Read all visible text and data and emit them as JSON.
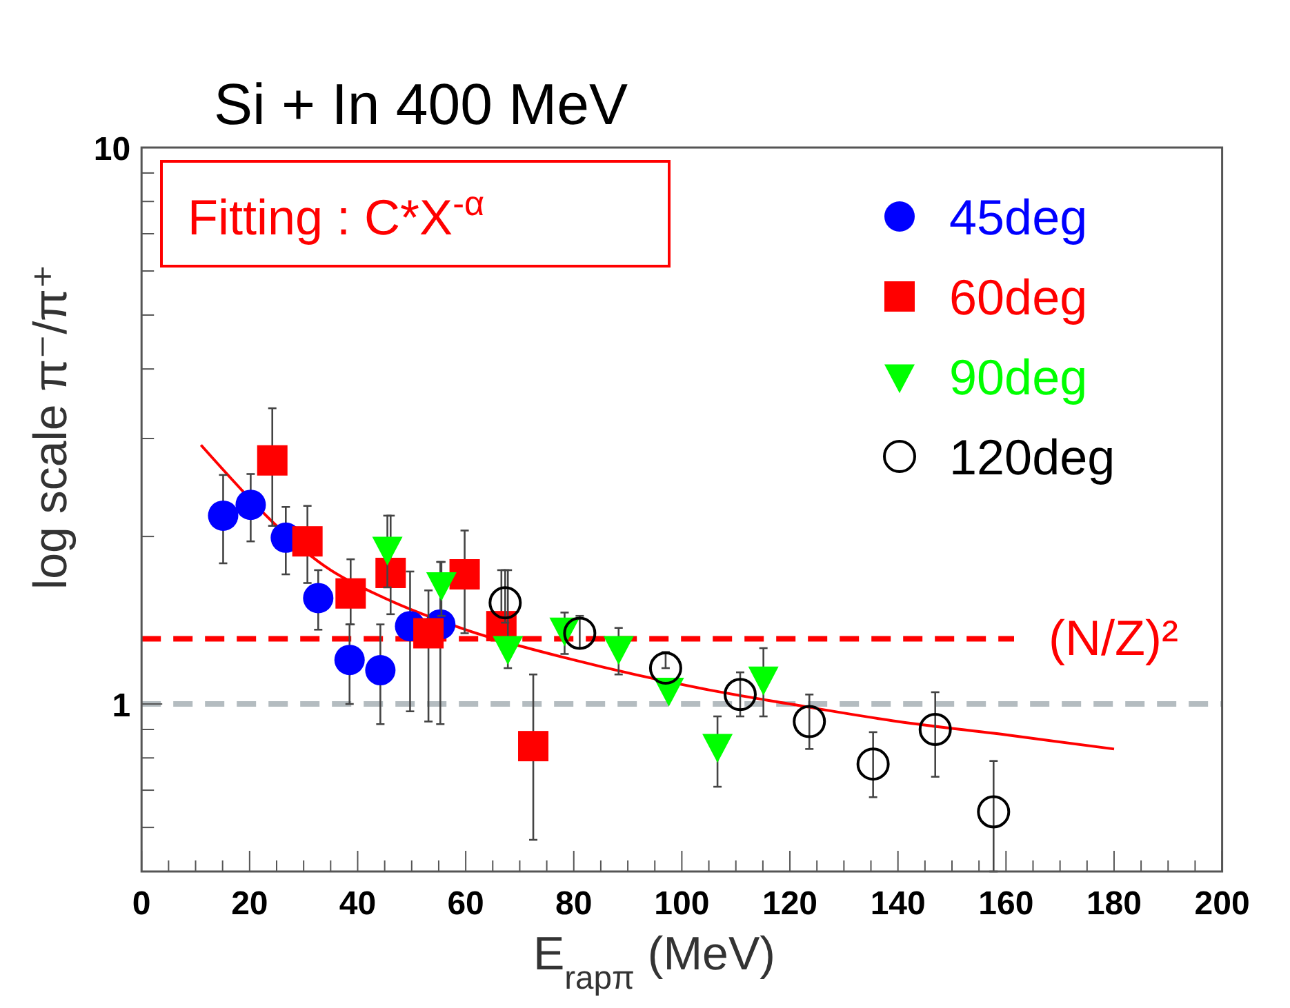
{
  "chart_data": {
    "type": "scatter",
    "title": "Si + In  400 MeV",
    "xlabel": "E$_{rapπ}$ (MeV)",
    "ylabel": "log scale   π⁻/π⁺",
    "annotations": [
      "Fitting : C*X$^{-α}$"
    ],
    "log": "y",
    "grid": false,
    "legend": "top right",
    "xlim": [
      0,
      200
    ],
    "xticks": [
      0,
      20,
      40,
      60,
      80,
      100,
      120,
      140,
      160,
      180,
      200
    ],
    "ylim": [
      0.5,
      10
    ],
    "yticks": [
      {
        "value": 0.6,
        "label": null
      },
      {
        "value": 0.7,
        "label": null
      },
      {
        "value": 0.8,
        "label": null
      },
      {
        "value": 0.9,
        "label": null
      },
      1,
      {
        "value": 2,
        "label": null
      },
      {
        "value": 3,
        "label": null
      },
      {
        "value": 4,
        "label": null
      },
      {
        "value": 5,
        "label": null
      },
      {
        "value": 6,
        "label": null
      },
      {
        "value": 7,
        "label": null
      },
      {
        "value": 8,
        "label": null
      },
      {
        "value": 9,
        "label": null
      },
      10
    ],
    "ref_lines": [
      {
        "axis": "y",
        "value": 1.31,
        "label": "(N/Z)²",
        "color": "#ff0000",
        "line_style": "dashed"
      },
      {
        "axis": "y",
        "value": 1,
        "label": null,
        "color": "#b4bcc0",
        "line_style": "dashed"
      }
    ],
    "series": [
      {
        "type": "line",
        "color": "#ff0000",
        "marker": "none",
        "line_style": "solid",
        "x": [
          11,
          35,
          45,
          60,
          80,
          105,
          120,
          140,
          160,
          180
        ],
        "values": [
          2.92,
          1.74,
          1.55,
          1.36,
          1.2,
          1.06,
          1.0,
          0.93,
          0.88,
          0.83
        ]
      },
      {
        "name": "45deg",
        "color": "#0000ff",
        "marker": "circle",
        "x": [
          15.1,
          20.2,
          26.7,
          32.7,
          38.5,
          44.2,
          49.7,
          55.3
        ],
        "values": [
          2.18,
          2.28,
          1.99,
          1.55,
          1.2,
          1.15,
          1.38,
          1.39
        ],
        "errors": [
          [
            1.79,
            2.58
          ],
          [
            1.96,
            2.59
          ],
          [
            1.71,
            2.26
          ],
          [
            1.36,
            1.74
          ],
          [
            1.0,
            1.39
          ],
          [
            0.92,
            1.39
          ],
          [
            0.97,
            1.73
          ],
          [
            0.92,
            1.8
          ]
        ]
      },
      {
        "name": "60deg",
        "color": "#ff0000",
        "marker": "square",
        "x": [
          24.2,
          30.7,
          38.7,
          46.1,
          53.1,
          59.8,
          66.6,
          72.5
        ],
        "values": [
          2.74,
          1.96,
          1.58,
          1.72,
          1.34,
          1.71,
          1.38,
          0.84
        ],
        "errors": [
          [
            2.09,
            3.4
          ],
          [
            1.65,
            2.27
          ],
          [
            1.39,
            1.82
          ],
          [
            1.45,
            2.18
          ],
          [
            0.93,
            1.6
          ],
          [
            1.34,
            2.05
          ],
          [
            1.3,
            1.74
          ],
          [
            0.57,
            1.13
          ]
        ]
      },
      {
        "name": "90deg",
        "color": "#00ff00",
        "marker": "triangle",
        "x": [
          45.5,
          55.5,
          67.8,
          78.3,
          88.3,
          97.6,
          106.6,
          115.1
        ],
        "values": [
          1.9,
          1.64,
          1.26,
          1.36,
          1.26,
          1.06,
          0.84,
          1.11
        ],
        "errors": [
          [
            1.62,
            2.18
          ],
          [
            1.44,
            1.8
          ],
          [
            1.16,
            1.74
          ],
          [
            1.23,
            1.46
          ],
          [
            1.13,
            1.37
          ],
          null,
          [
            0.71,
            0.95
          ],
          [
            0.95,
            1.26
          ]
        ]
      },
      {
        "name": "120deg",
        "color": "#000000",
        "marker": "circle",
        "x": [
          67.3,
          81.1,
          97.0,
          110.8,
          123.6,
          135.4,
          146.9,
          157.7
        ],
        "values": [
          1.52,
          1.34,
          1.16,
          1.04,
          0.93,
          0.78,
          0.9,
          0.64
        ],
        "errors": [
          [
            1.4,
            1.74
          ],
          [
            1.26,
            1.44
          ],
          [
            1.16,
            1.24
          ],
          [
            0.95,
            1.14
          ],
          [
            0.83,
            1.04
          ],
          [
            0.68,
            0.89
          ],
          [
            0.74,
            1.05
          ],
          [
            0.5,
            0.79
          ]
        ]
      }
    ]
  }
}
